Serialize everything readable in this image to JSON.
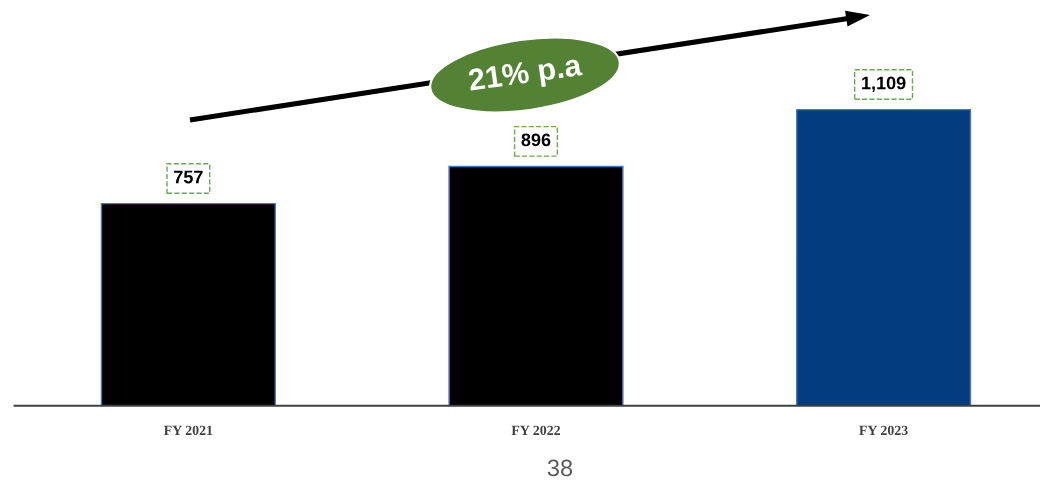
{
  "chart_data": {
    "type": "bar",
    "categories": [
      "FY 2021",
      "FY 2022",
      "FY 2023"
    ],
    "values": [
      757,
      896,
      1109
    ],
    "colors": [
      "#000000",
      "#000000",
      "#023e7d"
    ],
    "value_labels": [
      "757",
      "896",
      "1,109"
    ],
    "grid": false,
    "legend": false,
    "annotations": [
      "21% p.a",
      "38"
    ]
  }
}
